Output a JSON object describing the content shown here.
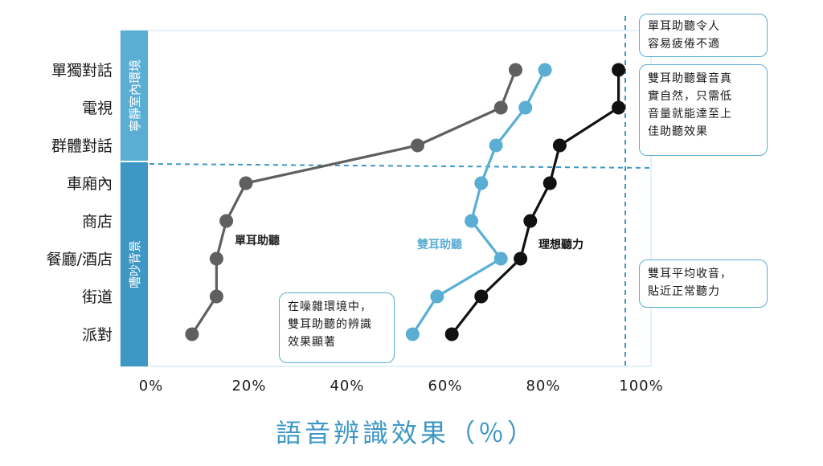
{
  "chart_data": {
    "type": "line",
    "categories": [
      "單獨對話",
      "電視",
      "群體對話",
      "車廂內",
      "商店",
      "餐廳/酒店",
      "街道",
      "派對"
    ],
    "xlabel": "語音辨識效果（％）",
    "xticks": [
      "0%",
      "20%",
      "40%",
      "60%",
      "80%",
      "100%"
    ],
    "xlim": [
      0,
      100
    ],
    "grid": false,
    "series": [
      {
        "name": "單耳助聽",
        "color": "#5f5f5f",
        "values": [
          75,
          72,
          55,
          20,
          16,
          14,
          14,
          9
        ]
      },
      {
        "name": "雙耳助聽",
        "color": "#5aaed3",
        "values": [
          81,
          77,
          71,
          68,
          66,
          72,
          59,
          54
        ]
      },
      {
        "name": "理想聽力",
        "color": "#111111",
        "values": [
          96,
          96,
          84,
          82,
          78,
          76,
          68,
          62
        ]
      }
    ],
    "bands": [
      {
        "label": "寧靜室內環境",
        "from": 0,
        "to": 2
      },
      {
        "label": "嘈吵背景",
        "from": 3,
        "to": 7
      }
    ],
    "reference_line_x": 96,
    "annotations": [
      "單耳助聽令人\n容易疲倦不適",
      "雙耳助聽聲音真\n實自然，只需低\n音量就能達至上\n佳助聽效果",
      "雙耳平均收音，\n貼近正常聽力",
      "在噪雜環境中，\n雙耳助聽的辨識\n效果顯著"
    ]
  }
}
